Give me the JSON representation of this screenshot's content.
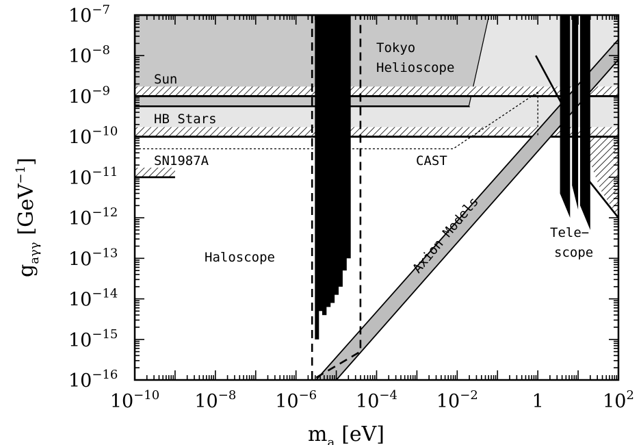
{
  "chart_data": {
    "type": "exclusion-plot",
    "x_axis": {
      "label_main": "m",
      "label_sub": "a",
      "label_unit": "[eV]",
      "scale": "log10",
      "range_exp": [
        -10,
        2
      ],
      "tick_labels": [
        {
          "value": -10,
          "base": "10",
          "exp": "−10"
        },
        {
          "value": -8,
          "base": "10",
          "exp": "−8"
        },
        {
          "value": -6,
          "base": "10",
          "exp": "−6"
        },
        {
          "value": -4,
          "base": "10",
          "exp": "−4"
        },
        {
          "value": -2,
          "base": "10",
          "exp": "−2"
        },
        {
          "value": 0,
          "base": "1",
          "exp": ""
        },
        {
          "value": 2,
          "base": "10",
          "exp": "2"
        }
      ]
    },
    "y_axis": {
      "label_main": "g",
      "label_sub": "aγγ",
      "label_unit": "[GeV",
      "label_unit_exp": "−1",
      "label_close": "]",
      "scale": "log10",
      "range_exp": [
        -16,
        -7
      ],
      "tick_labels": [
        {
          "value": -7,
          "base": "10",
          "exp": "−7"
        },
        {
          "value": -8,
          "base": "10",
          "exp": "−8"
        },
        {
          "value": -9,
          "base": "10",
          "exp": "−9"
        },
        {
          "value": -10,
          "base": "10",
          "exp": "−10"
        },
        {
          "value": -11,
          "base": "10",
          "exp": "−11"
        },
        {
          "value": -12,
          "base": "10",
          "exp": "−12"
        },
        {
          "value": -13,
          "base": "10",
          "exp": "−13"
        },
        {
          "value": -14,
          "base": "10",
          "exp": "−14"
        },
        {
          "value": -15,
          "base": "10",
          "exp": "−15"
        },
        {
          "value": -16,
          "base": "10",
          "exp": "−16"
        }
      ]
    },
    "region_labels": {
      "tokyo_1": "Tokyo",
      "tokyo_2": "Helioscope",
      "sun": "Sun",
      "hb_stars": "HB Stars",
      "sn1987a": "SN1987A",
      "cast": "CAST",
      "haloscope": "Haloscope",
      "axion_models": "Axion Models",
      "telescope_1": "Tele−",
      "telescope_2": "scope"
    },
    "regions": {
      "sun_limit_log_g": -9,
      "hb_stars_limit_log_g": -10,
      "sn1987a_log_m_max": -9,
      "sn1987a_log_g_upper": -11,
      "tokyo_helioscope_polygon": [
        [
          -10,
          -7
        ],
        [
          -1.2,
          -7
        ],
        [
          -1.7,
          -9.25
        ],
        [
          -10,
          -9.25
        ]
      ],
      "cast_polygon": [
        [
          -10,
          -10.3
        ],
        [
          -2.1,
          -10.3
        ],
        [
          0,
          -8.9
        ],
        [
          0,
          -10
        ]
      ],
      "haloscope_dashed": [
        [
          -5.6,
          -7
        ],
        [
          -5.6,
          -16
        ],
        [
          -4.4,
          -15.3
        ],
        [
          -4.4,
          -7
        ]
      ],
      "haloscope_solid_line": [
        [
          -5.48,
          -7
        ],
        [
          -5.48,
          -15.0
        ]
      ],
      "haloscope_spikes": [
        {
          "log_m_min": -5.45,
          "log_m_max": -5.35,
          "log_g_bottom": -14.3
        },
        {
          "log_m_min": -5.35,
          "log_m_max": -5.25,
          "log_g_bottom": -14.4
        },
        {
          "log_m_min": -5.25,
          "log_m_max": -5.15,
          "log_g_bottom": -14.2
        },
        {
          "log_m_min": -5.15,
          "log_m_max": -5.05,
          "log_g_bottom": -14.1
        },
        {
          "log_m_min": -5.05,
          "log_m_max": -4.95,
          "log_g_bottom": -13.9
        },
        {
          "log_m_min": -4.95,
          "log_m_max": -4.85,
          "log_g_bottom": -13.7
        },
        {
          "log_m_min": -4.85,
          "log_m_max": -4.75,
          "log_g_bottom": -13.3
        },
        {
          "log_m_min": -4.75,
          "log_m_max": -4.65,
          "log_g_bottom": -13.0
        }
      ],
      "axion_band_lower_edge": [
        [
          -5.0,
          -16
        ],
        [
          2.0,
          -8.1
        ]
      ],
      "axion_band_upper_edge": [
        [
          -5.5,
          -16
        ],
        [
          2.0,
          -7.6
        ]
      ],
      "telescope_spikes": [
        {
          "log_m_min": 0.55,
          "log_m_max": 0.8,
          "log_g_bottom": -12.0
        },
        {
          "log_m_min": 0.85,
          "log_m_max": 1.0,
          "log_g_bottom": -11.8
        },
        {
          "log_m_min": 1.05,
          "log_m_max": 1.3,
          "log_g_bottom": -12.3
        }
      ]
    },
    "grid": false,
    "legend": "none"
  }
}
